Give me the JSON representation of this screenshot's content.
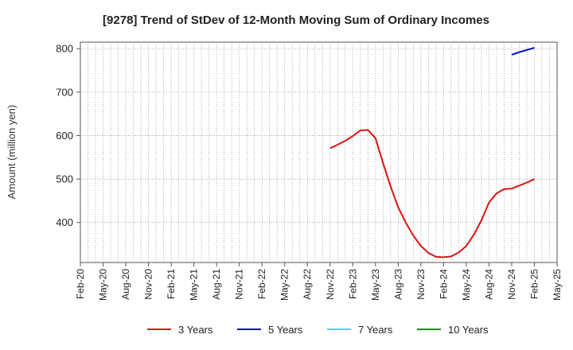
{
  "chart_data": {
    "type": "line",
    "title": "[9278]  Trend of StDev of 12-Month Moving Sum of Ordinary Incomes",
    "ylabel": "Amount (million yen)",
    "xlabel": "",
    "ylim": [
      308,
      815
    ],
    "yticks": [
      400,
      500,
      600,
      700,
      800
    ],
    "x_tick_labels": [
      "Feb-20",
      "May-20",
      "Aug-20",
      "Nov-20",
      "Feb-21",
      "May-21",
      "Aug-21",
      "Nov-21",
      "Feb-22",
      "May-22",
      "Aug-22",
      "Nov-22",
      "Feb-23",
      "May-23",
      "Aug-23",
      "Nov-23",
      "Feb-24",
      "May-24",
      "Aug-24",
      "Nov-24",
      "Feb-25",
      "May-25"
    ],
    "grid": true,
    "legend_position": "bottom",
    "series": [
      {
        "name": "3 Years",
        "color": "#dd1111",
        "points": [
          [
            "Nov-22",
            571
          ],
          [
            "Dec-22",
            579
          ],
          [
            "Jan-23",
            588
          ],
          [
            "Feb-23",
            599
          ],
          [
            "Mar-23",
            612
          ],
          [
            "Apr-23",
            613
          ],
          [
            "May-23",
            594
          ],
          [
            "Jun-23",
            537
          ],
          [
            "Jul-23",
            483
          ],
          [
            "Aug-23",
            435
          ],
          [
            "Sep-23",
            400
          ],
          [
            "Oct-23",
            370
          ],
          [
            "Nov-23",
            346
          ],
          [
            "Dec-23",
            330
          ],
          [
            "Jan-24",
            321
          ],
          [
            "Feb-24",
            320
          ],
          [
            "Mar-24",
            322
          ],
          [
            "Apr-24",
            331
          ],
          [
            "May-24",
            346
          ],
          [
            "Jun-24",
            372
          ],
          [
            "Jul-24",
            405
          ],
          [
            "Aug-24",
            446
          ],
          [
            "Sep-24",
            467
          ],
          [
            "Oct-24",
            477
          ],
          [
            "Nov-24",
            478
          ],
          [
            "Dec-24",
            485
          ],
          [
            "Jan-25",
            492
          ],
          [
            "Feb-25",
            500
          ]
        ]
      },
      {
        "name": "5 Years",
        "color": "#0000cc",
        "points": [
          [
            "Nov-24",
            786
          ],
          [
            "Dec-24",
            792
          ],
          [
            "Jan-25",
            797
          ],
          [
            "Feb-25",
            802
          ]
        ]
      },
      {
        "name": "7 Years",
        "color": "#22e5ee",
        "points": []
      },
      {
        "name": "10 Years",
        "color": "#228822",
        "points": []
      }
    ]
  }
}
